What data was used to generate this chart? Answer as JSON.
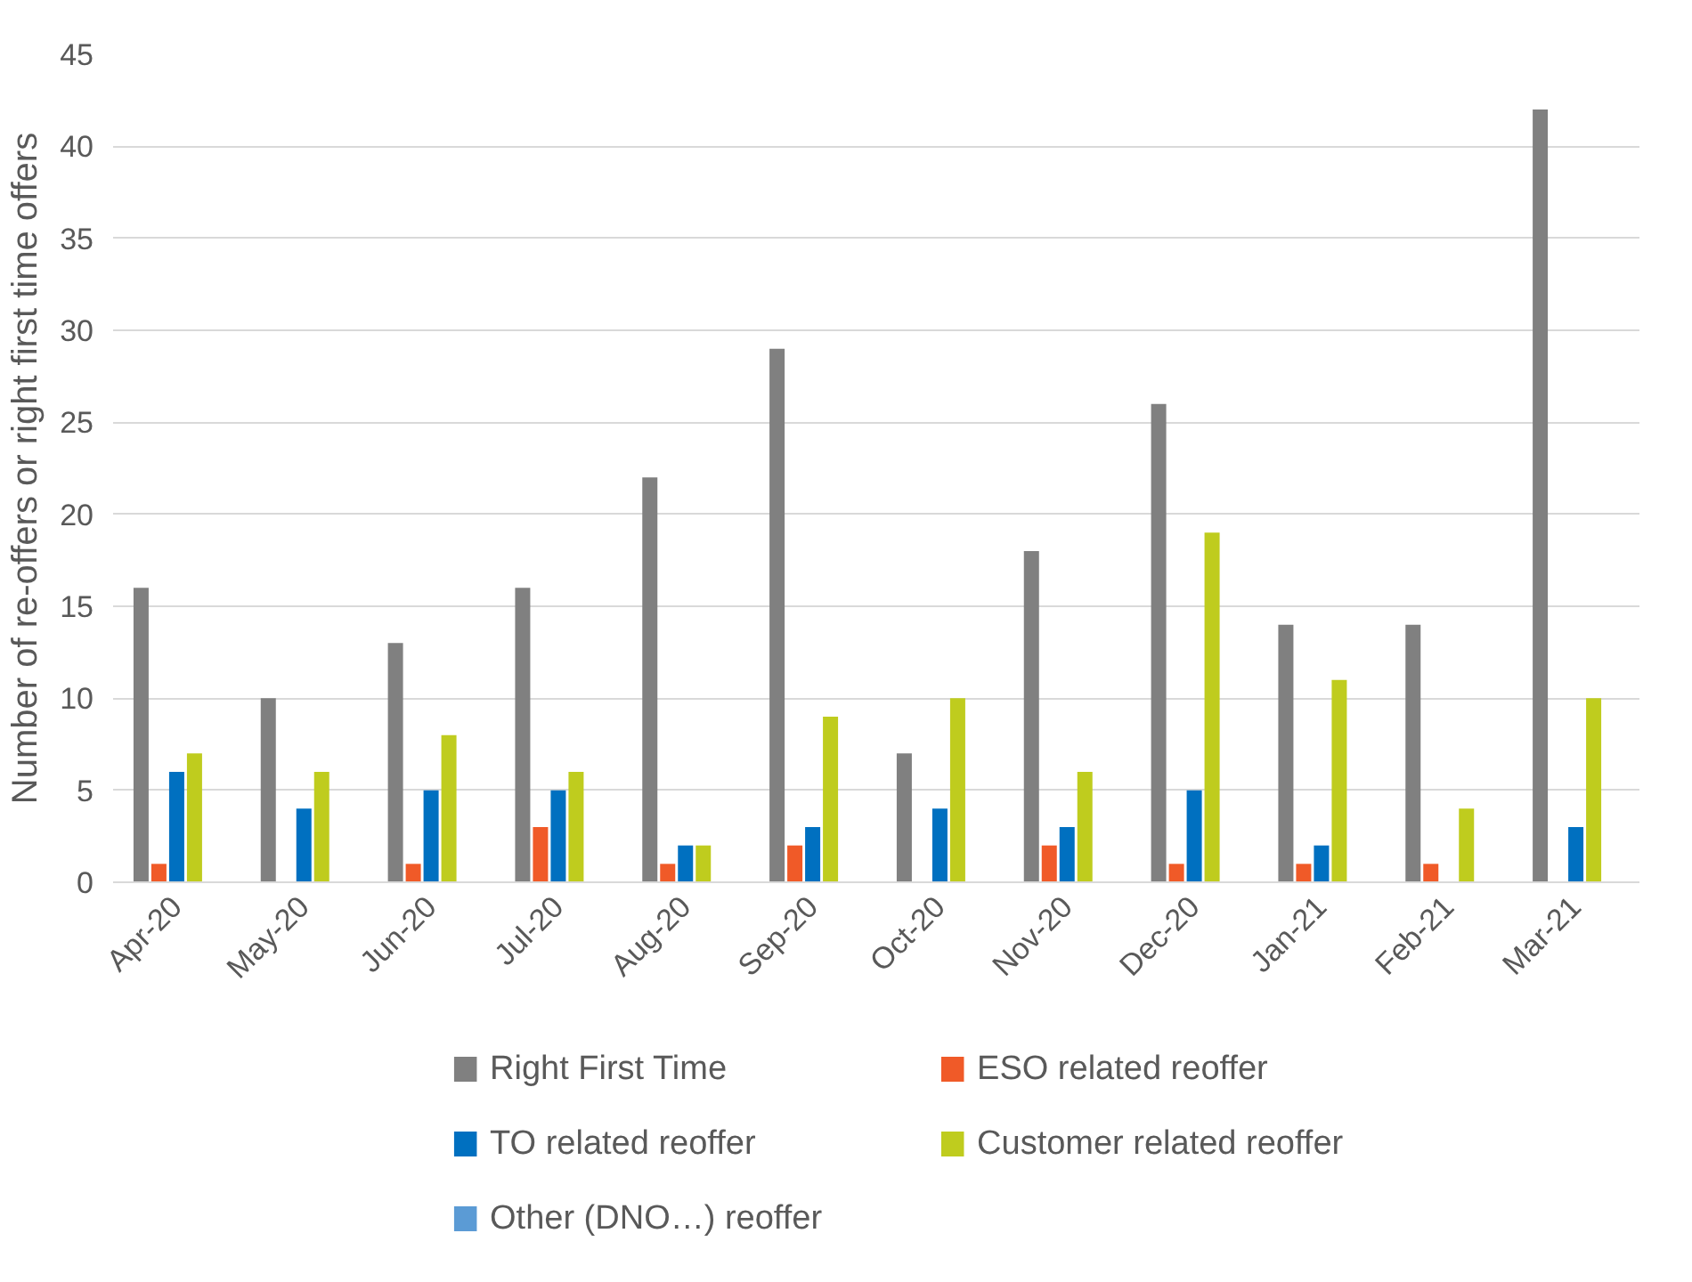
{
  "chart_data": {
    "type": "bar",
    "ylabel": "Number of re-offers or right first time offers",
    "categories": [
      "Apr-20",
      "May-20",
      "Jun-20",
      "Jul-20",
      "Aug-20",
      "Sep-20",
      "Oct-20",
      "Nov-20",
      "Dec-20",
      "Jan-21",
      "Feb-21",
      "Mar-21"
    ],
    "series": [
      {
        "name": "Right First Time",
        "color": "#808080",
        "values": [
          16,
          10,
          13,
          16,
          22,
          29,
          7,
          18,
          26,
          14,
          14,
          42
        ]
      },
      {
        "name": "ESO related reoffer",
        "color": "#f05a28",
        "values": [
          1,
          0,
          1,
          3,
          1,
          2,
          0,
          2,
          1,
          1,
          1,
          0
        ]
      },
      {
        "name": "TO related reoffer",
        "color": "#0070c0",
        "values": [
          6,
          4,
          5,
          5,
          2,
          3,
          4,
          3,
          5,
          2,
          0,
          3
        ]
      },
      {
        "name": "Customer related reoffer",
        "color": "#bfcc1e",
        "values": [
          7,
          6,
          8,
          6,
          2,
          9,
          10,
          6,
          19,
          11,
          4,
          10
        ]
      },
      {
        "name": "Other (DNO…) reoffer",
        "color": "#5b9bd5",
        "values": [
          0,
          0,
          0,
          0,
          0,
          0,
          0,
          0,
          0,
          0,
          0,
          0
        ]
      }
    ],
    "ylim": [
      0,
      45
    ],
    "yticks": [
      0,
      5,
      10,
      15,
      20,
      25,
      30,
      35,
      40,
      45
    ],
    "grid": "y",
    "legend": "bottom"
  }
}
